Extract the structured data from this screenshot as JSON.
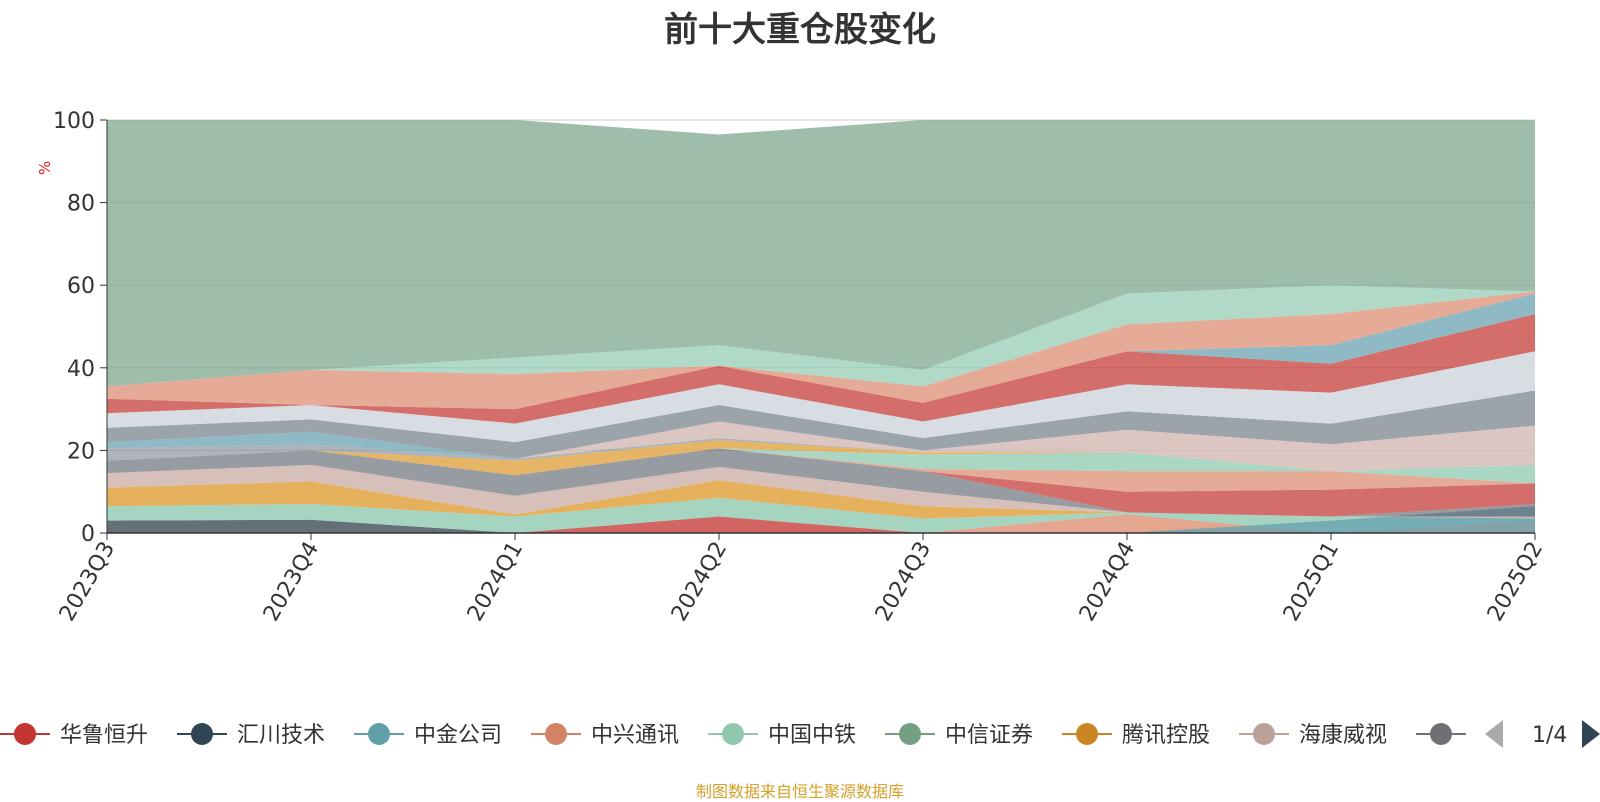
{
  "chart_data": {
    "type": "area",
    "title": "前十大重仓股变化",
    "ylabel": "%",
    "ylim": [
      0,
      100
    ],
    "yticks": [
      0,
      20,
      40,
      60,
      80,
      100
    ],
    "categories": [
      "2023Q3",
      "2023Q4",
      "2024Q1",
      "2024Q2",
      "2024Q3",
      "2024Q4",
      "2025Q1",
      "2025Q2"
    ],
    "grid": true,
    "legend_position": "bottom",
    "pagination": "1/4",
    "bands": [
      {
        "color": "#5d6770",
        "opacity": 0.95,
        "lower": [
          0,
          0,
          0,
          0,
          0,
          0,
          0,
          0
        ],
        "upper": [
          3.0,
          3.2,
          0,
          0,
          0,
          0,
          0,
          0
        ]
      },
      {
        "color": "#c94a46",
        "opacity": 0.85,
        "lower": [
          0,
          0,
          0,
          0,
          0,
          0,
          0,
          0
        ],
        "upper": [
          0,
          0,
          0,
          4.0,
          0,
          0,
          0,
          0
        ]
      },
      {
        "color": "#e29c84",
        "opacity": 0.9,
        "lower": [
          0,
          0,
          0,
          0,
          0,
          0,
          0,
          0
        ],
        "upper": [
          0,
          0,
          0,
          0,
          0,
          4.5,
          0,
          3.0
        ]
      },
      {
        "color": "#8ec9b0",
        "opacity": 0.8,
        "lower": [
          3.0,
          3.2,
          0,
          4.0,
          0,
          4.5,
          0,
          3.0
        ],
        "upper": [
          6.5,
          7.0,
          4.0,
          8.5,
          3.5,
          5.0,
          4.0,
          3.5
        ]
      },
      {
        "color": "#6aa2b0",
        "opacity": 0.8,
        "lower": [
          0,
          0,
          0,
          0,
          0,
          0,
          0,
          0
        ],
        "upper": [
          0,
          0,
          0,
          0,
          0,
          0,
          3.0,
          6.5
        ]
      },
      {
        "color": "#e2a84a",
        "opacity": 0.9,
        "lower": [
          6.5,
          7.0,
          4.0,
          8.5,
          3.5,
          5.0,
          4.0,
          3.5
        ],
        "upper": [
          11.0,
          12.5,
          4.5,
          12.8,
          6.5,
          5.0,
          4.0,
          3.5
        ]
      },
      {
        "color": "#d3b8b2",
        "opacity": 0.9,
        "lower": [
          11.0,
          12.5,
          4.5,
          12.8,
          6.5,
          5.0,
          4.0,
          3.5
        ],
        "upper": [
          14.5,
          16.5,
          9.0,
          16.0,
          10.0,
          5.0,
          4.0,
          4.0
        ]
      },
      {
        "color": "#5d6770",
        "opacity": 0.65,
        "lower": [
          14.5,
          16.5,
          9.0,
          16.0,
          10.0,
          5.0,
          4.0,
          4.0
        ],
        "upper": [
          17.5,
          20.0,
          14.0,
          20.5,
          15.0,
          5.0,
          4.0,
          7.0
        ]
      },
      {
        "color": "#c94a46",
        "opacity": 0.8,
        "lower": [
          17.5,
          20.0,
          14.0,
          20.5,
          15.0,
          5.0,
          4.0,
          7.0
        ],
        "upper": [
          17.5,
          20.0,
          14.0,
          20.5,
          15.0,
          10.0,
          10.5,
          12.0
        ]
      },
      {
        "color": "#e29c84",
        "opacity": 0.85,
        "lower": [
          17.5,
          20.0,
          14.0,
          20.5,
          15.0,
          10.0,
          10.5,
          12.0
        ],
        "upper": [
          17.5,
          20.0,
          14.0,
          20.5,
          15.5,
          15.0,
          15.0,
          12.0
        ]
      },
      {
        "color": "#8ec9b0",
        "opacity": 0.75,
        "lower": [
          17.5,
          20.0,
          14.0,
          20.5,
          15.5,
          15.0,
          15.0,
          12.0
        ],
        "upper": [
          17.5,
          20.0,
          14.0,
          20.5,
          19.0,
          19.5,
          15.0,
          16.5
        ]
      },
      {
        "color": "#e2a84a",
        "opacity": 0.85,
        "lower": [
          17.5,
          20.0,
          14.0,
          20.5,
          19.0,
          19.5,
          15.0,
          16.5
        ],
        "upper": [
          17.5,
          20.0,
          17.5,
          22.5,
          19.5,
          19.5,
          15.0,
          16.5
        ]
      },
      {
        "color": "#8a949c",
        "opacity": 0.7,
        "lower": [
          17.5,
          20.0,
          17.5,
          22.5,
          19.5,
          19.5,
          15.0,
          16.5
        ],
        "upper": [
          20.5,
          21.5,
          18.0,
          23.0,
          19.5,
          19.5,
          15.0,
          16.5
        ]
      },
      {
        "color": "#6aa2b0",
        "opacity": 0.75,
        "lower": [
          20.5,
          21.5,
          18.0,
          23.0,
          19.5,
          19.5,
          15.0,
          16.5
        ],
        "upper": [
          22.0,
          24.5,
          18.0,
          23.0,
          19.5,
          19.5,
          15.0,
          16.5
        ]
      },
      {
        "color": "#d3b8b2",
        "opacity": 0.8,
        "lower": [
          22.0,
          24.5,
          18.0,
          23.0,
          19.5,
          19.5,
          15.0,
          16.5
        ],
        "upper": [
          22.0,
          24.5,
          18.0,
          27.0,
          20.0,
          25.0,
          21.5,
          26.0
        ]
      },
      {
        "color": "#8a949c",
        "opacity": 0.85,
        "lower": [
          22.0,
          24.5,
          18.0,
          27.0,
          20.0,
          25.0,
          21.5,
          26.0
        ],
        "upper": [
          25.5,
          27.5,
          22.0,
          31.0,
          23.0,
          29.5,
          26.5,
          34.5
        ]
      },
      {
        "color": "#d8dde3",
        "opacity": 1.0,
        "lower": [
          25.5,
          27.5,
          22.0,
          31.0,
          23.0,
          29.5,
          26.5,
          34.5
        ],
        "upper": [
          29.0,
          31.0,
          26.5,
          36.0,
          27.0,
          36.0,
          34.0,
          44.0
        ]
      },
      {
        "color": "#c94a46",
        "opacity": 0.8,
        "lower": [
          29.0,
          31.0,
          26.5,
          36.0,
          27.0,
          36.0,
          34.0,
          44.0
        ],
        "upper": [
          32.5,
          31.0,
          30.0,
          40.5,
          31.5,
          44.0,
          41.0,
          53.0
        ]
      },
      {
        "color": "#6aa2b0",
        "opacity": 0.75,
        "lower": [
          32.5,
          31.0,
          30.0,
          40.5,
          31.5,
          44.0,
          41.0,
          53.0
        ],
        "upper": [
          32.5,
          31.0,
          30.0,
          40.5,
          31.5,
          44.0,
          45.5,
          58.0
        ]
      },
      {
        "color": "#e29c84",
        "opacity": 0.85,
        "lower": [
          32.5,
          31.0,
          30.0,
          40.5,
          31.5,
          44.0,
          45.5,
          58.0
        ],
        "upper": [
          35.5,
          39.5,
          38.5,
          40.5,
          35.5,
          50.5,
          53.0,
          58.5
        ]
      },
      {
        "color": "#8ec9b0",
        "opacity": 0.7,
        "lower": [
          35.5,
          39.5,
          38.5,
          40.5,
          35.5,
          50.5,
          53.0,
          58.5
        ],
        "upper": [
          35.5,
          39.5,
          42.5,
          45.5,
          39.5,
          58.0,
          60.0,
          58.5
        ]
      },
      {
        "color": "#7ea78e",
        "opacity": 0.75,
        "lower": [
          35.5,
          39.5,
          42.5,
          45.5,
          39.5,
          58.0,
          60.0,
          58.5
        ],
        "upper": [
          100,
          100,
          100,
          96.5,
          100,
          100,
          100,
          100
        ]
      }
    ],
    "legend": [
      {
        "name": "华鲁恒升",
        "color": "#c23531"
      },
      {
        "name": "汇川技术",
        "color": "#2f4554"
      },
      {
        "name": "中金公司",
        "color": "#61a0a8"
      },
      {
        "name": "中兴通讯",
        "color": "#d48265"
      },
      {
        "name": "中国中铁",
        "color": "#91c7ae"
      },
      {
        "name": "中信证券",
        "color": "#749f83"
      },
      {
        "name": "腾讯控股",
        "color": "#ca8622"
      },
      {
        "name": "海康威视",
        "color": "#bda29a"
      },
      {
        "name": "",
        "color": "#6e7074"
      }
    ]
  },
  "footer": "制图数据来自恒生聚源数据库"
}
